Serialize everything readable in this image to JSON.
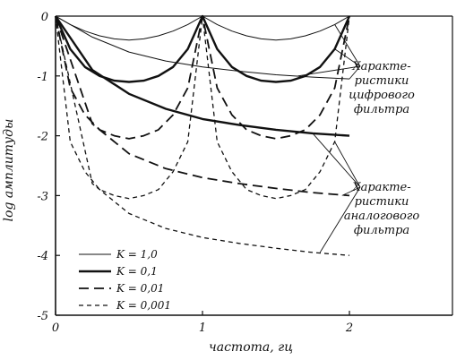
{
  "chart_data": {
    "type": "line",
    "title": "",
    "xlabel": "частота, гц",
    "ylabel": "log амплитуды",
    "xlim": [
      0,
      2.7
    ],
    "ylim": [
      -5,
      0
    ],
    "x_ticks": [
      "0",
      "1",
      "2"
    ],
    "y_ticks": [
      "0",
      "-1",
      "-2",
      "-3",
      "-4",
      "-5"
    ],
    "grid": false,
    "legend_position": "bottom-left",
    "legend": [
      {
        "label": "K = 1,0",
        "style": "thin-solid"
      },
      {
        "label": "K = 0,1",
        "style": "thick-solid"
      },
      {
        "label": "K = 0,01",
        "style": "long-dash"
      },
      {
        "label": "K = 0,001",
        "style": "short-dash"
      }
    ],
    "annotations": [
      {
        "lines": [
          "Характе-",
          "ристики",
          "цифрового",
          "фильтра"
        ]
      },
      {
        "lines": [
          "Характе-",
          "ристики",
          "аналогового",
          "фильтра"
        ]
      }
    ],
    "series": [
      {
        "legend": "K = 1,0",
        "group": "digital",
        "style": "thin-solid",
        "x": [
          0,
          0.1,
          0.2,
          0.3,
          0.4,
          0.5,
          0.6,
          0.7,
          0.8,
          0.9,
          1.0,
          1.1,
          1.2,
          1.3,
          1.4,
          1.5,
          1.6,
          1.7,
          1.8,
          1.9,
          2.0
        ],
        "y": [
          0,
          -0.14,
          -0.25,
          -0.33,
          -0.38,
          -0.4,
          -0.38,
          -0.33,
          -0.25,
          -0.14,
          0,
          -0.14,
          -0.25,
          -0.33,
          -0.38,
          -0.4,
          -0.38,
          -0.33,
          -0.25,
          -0.14,
          0
        ]
      },
      {
        "legend": "K = 0,1",
        "group": "digital",
        "style": "thick-solid",
        "x": [
          0,
          0.1,
          0.2,
          0.3,
          0.4,
          0.5,
          0.6,
          0.7,
          0.8,
          0.9,
          1.0,
          1.1,
          1.2,
          1.3,
          1.4,
          1.5,
          1.6,
          1.7,
          1.8,
          1.9,
          2.0
        ],
        "y": [
          0,
          -0.55,
          -0.85,
          -1.0,
          -1.08,
          -1.1,
          -1.08,
          -1.0,
          -0.85,
          -0.55,
          0,
          -0.55,
          -0.85,
          -1.0,
          -1.08,
          -1.1,
          -1.08,
          -1.0,
          -0.85,
          -0.55,
          0
        ]
      },
      {
        "legend": "K = 0,01",
        "group": "digital",
        "style": "long-dash",
        "x": [
          0,
          0.1,
          0.2,
          0.3,
          0.4,
          0.5,
          0.6,
          0.7,
          0.8,
          0.9,
          1.0,
          1.1,
          1.2,
          1.3,
          1.4,
          1.5,
          1.6,
          1.7,
          1.8,
          1.9,
          2.0
        ],
        "y": [
          0,
          -1.2,
          -1.65,
          -1.9,
          -2.0,
          -2.05,
          -2.0,
          -1.9,
          -1.65,
          -1.2,
          0,
          -1.2,
          -1.65,
          -1.9,
          -2.0,
          -2.05,
          -2.0,
          -1.9,
          -1.65,
          -1.2,
          0
        ]
      },
      {
        "legend": "K = 0,001",
        "group": "digital",
        "style": "short-dash",
        "x": [
          0,
          0.1,
          0.2,
          0.3,
          0.4,
          0.5,
          0.6,
          0.7,
          0.8,
          0.9,
          1.0,
          1.1,
          1.2,
          1.3,
          1.4,
          1.5,
          1.6,
          1.7,
          1.8,
          1.9,
          2.0
        ],
        "y": [
          0,
          -2.1,
          -2.6,
          -2.9,
          -3.0,
          -3.05,
          -3.0,
          -2.9,
          -2.6,
          -2.1,
          0,
          -2.1,
          -2.6,
          -2.9,
          -3.0,
          -3.05,
          -3.0,
          -2.9,
          -2.6,
          -2.1,
          0
        ]
      },
      {
        "legend": "K = 1,0",
        "group": "analog",
        "style": "thin-solid",
        "x": [
          0,
          0.25,
          0.5,
          0.75,
          1.0,
          1.25,
          1.5,
          1.75,
          2.0
        ],
        "y": [
          0,
          -0.35,
          -0.6,
          -0.75,
          -0.85,
          -0.92,
          -0.98,
          -1.02,
          -1.05
        ]
      },
      {
        "legend": "K = 0,1",
        "group": "analog",
        "style": "thick-solid",
        "x": [
          0,
          0.25,
          0.5,
          0.75,
          1.0,
          1.25,
          1.5,
          1.75,
          2.0
        ],
        "y": [
          0,
          -0.9,
          -1.3,
          -1.55,
          -1.72,
          -1.82,
          -1.9,
          -1.96,
          -2.0
        ]
      },
      {
        "legend": "K = 0,01",
        "group": "analog",
        "style": "long-dash",
        "x": [
          0,
          0.25,
          0.5,
          0.75,
          1.0,
          1.25,
          1.5,
          1.75,
          2.0
        ],
        "y": [
          0,
          -1.8,
          -2.3,
          -2.55,
          -2.7,
          -2.8,
          -2.88,
          -2.95,
          -3.0
        ]
      },
      {
        "legend": "K = 0,001",
        "group": "analog",
        "style": "short-dash",
        "x": [
          0,
          0.25,
          0.5,
          0.75,
          1.0,
          1.25,
          1.5,
          1.75,
          2.0
        ],
        "y": [
          0,
          -2.8,
          -3.3,
          -3.55,
          -3.7,
          -3.8,
          -3.88,
          -3.95,
          -4.0
        ]
      }
    ]
  }
}
